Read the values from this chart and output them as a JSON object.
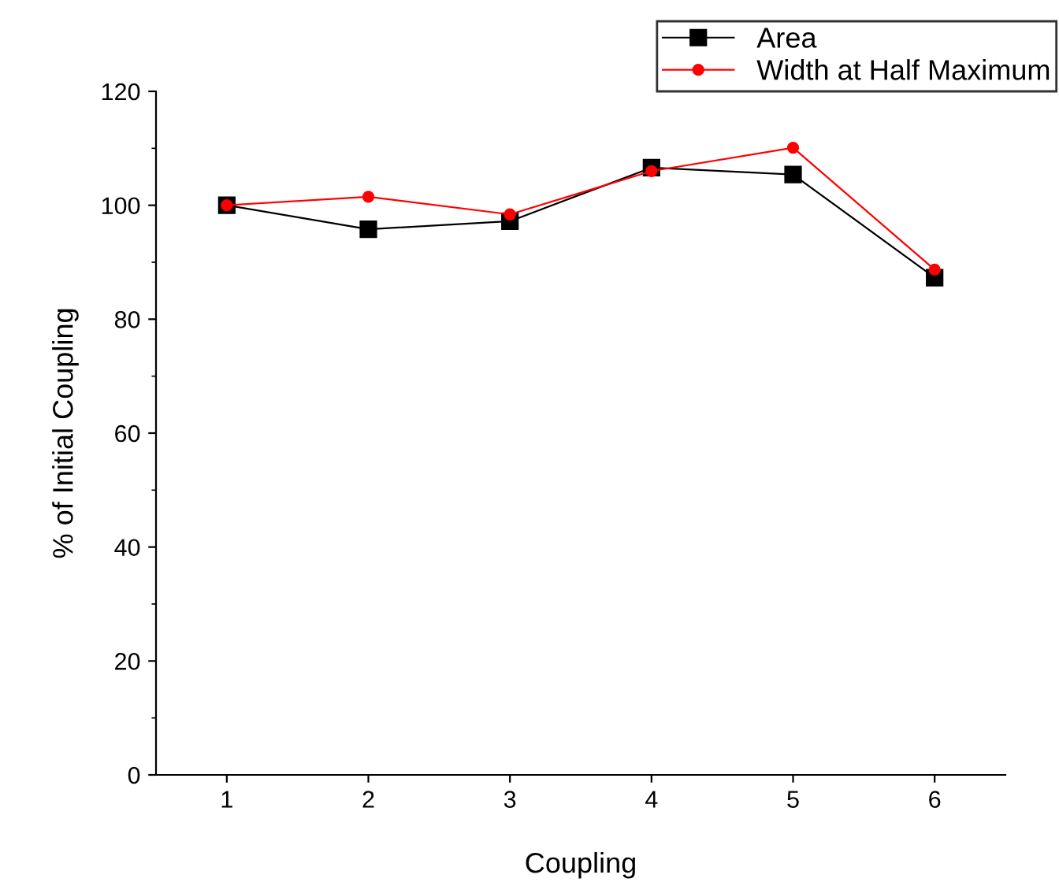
{
  "chart_data": {
    "type": "line",
    "xlabel": "Coupling",
    "ylabel": "% of Initial Coupling",
    "x": [
      1,
      2,
      3,
      4,
      5,
      6
    ],
    "series": [
      {
        "name": "Area",
        "color": "#000000",
        "marker": "square",
        "values": [
          100,
          95.8,
          97.2,
          106.6,
          105.4,
          87.3
        ]
      },
      {
        "name": "Width at Half Maximum",
        "color": "#ff0000",
        "marker": "circle",
        "values": [
          100,
          101.5,
          98.4,
          106.0,
          110.1,
          88.7
        ]
      }
    ],
    "xlim": [
      0.5,
      6.5
    ],
    "xticks": [
      1,
      2,
      3,
      4,
      5,
      6
    ],
    "ylim": [
      0,
      120
    ],
    "yticks": [
      0,
      20,
      40,
      60,
      80,
      100,
      120
    ],
    "grid": false,
    "legend": "top right",
    "line_style": "solid"
  }
}
